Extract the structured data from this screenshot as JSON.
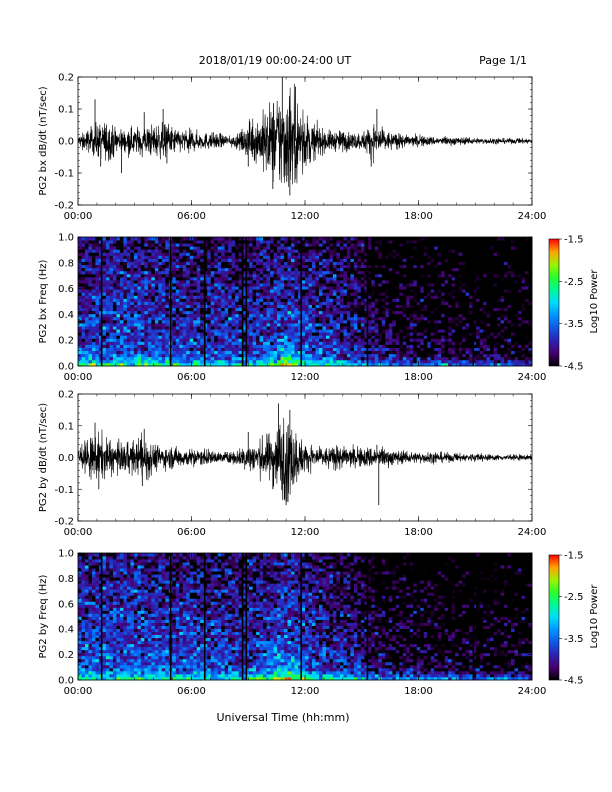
{
  "header": {
    "date_range": "2018/01/19   00:00-24:00 UT",
    "page": "Page 1/1"
  },
  "xlabel": "Universal Time (hh:mm)",
  "chart_data": [
    {
      "type": "line",
      "title": "",
      "ylabel": "PG2 bx dB/dt (nT/sec)",
      "xlabel": "",
      "xlim": [
        "00:00",
        "24:00"
      ],
      "xticks": [
        "00:00",
        "06:00",
        "12:00",
        "18:00",
        "24:00"
      ],
      "ylim": [
        -0.2,
        0.2
      ],
      "yticks": [
        "-0.2",
        "-0.1",
        "0.0",
        "0.1",
        "0.2"
      ],
      "color": "#000000",
      "envelope": {
        "hours": [
          0,
          0.5,
          1,
          1.5,
          2,
          2.5,
          3,
          3.5,
          4,
          4.5,
          5,
          5.5,
          6,
          6.5,
          7,
          7.5,
          8,
          8.5,
          9,
          9.5,
          10,
          10.5,
          11,
          11.5,
          12,
          12.5,
          13,
          13.5,
          14,
          14.5,
          15,
          15.5,
          16,
          16.5,
          17,
          17.5,
          18,
          19,
          20,
          21,
          22,
          23,
          24
        ],
        "amplitude": [
          0.02,
          0.04,
          0.06,
          0.07,
          0.05,
          0.04,
          0.05,
          0.05,
          0.06,
          0.06,
          0.05,
          0.04,
          0.04,
          0.03,
          0.03,
          0.025,
          0.02,
          0.025,
          0.06,
          0.08,
          0.12,
          0.17,
          0.19,
          0.16,
          0.1,
          0.06,
          0.04,
          0.035,
          0.04,
          0.03,
          0.03,
          0.06,
          0.05,
          0.03,
          0.025,
          0.02,
          0.02,
          0.015,
          0.015,
          0.01,
          0.01,
          0.01,
          0.01
        ]
      },
      "peaks": [
        {
          "t": 0.9,
          "y": 0.13
        },
        {
          "t": 1.2,
          "y": -0.08
        },
        {
          "t": 2.3,
          "y": -0.1
        },
        {
          "t": 3.5,
          "y": 0.09
        },
        {
          "t": 4.5,
          "y": 0.1
        },
        {
          "t": 4.7,
          "y": -0.07
        },
        {
          "t": 9.0,
          "y": -0.08
        },
        {
          "t": 10.3,
          "y": -0.15
        },
        {
          "t": 10.8,
          "y": 0.2
        },
        {
          "t": 11.2,
          "y": -0.17
        },
        {
          "t": 11.5,
          "y": 0.17
        },
        {
          "t": 15.8,
          "y": 0.1
        },
        {
          "t": 15.5,
          "y": -0.08
        }
      ]
    },
    {
      "type": "heatmap",
      "title": "",
      "ylabel": "PG2 bx Freq (Hz)",
      "xlim": [
        "00:00",
        "24:00"
      ],
      "xticks": [
        "00:00",
        "06:00",
        "12:00",
        "18:00",
        "24:00"
      ],
      "ylim": [
        0.0,
        1.0
      ],
      "yticks": [
        "0.0",
        "0.2",
        "0.4",
        "0.6",
        "0.8",
        "1.0"
      ],
      "colorbar": {
        "label": "Log10 Power",
        "range": [
          -4.5,
          -1.5
        ],
        "ticks": [
          "-1.5",
          "-2.5",
          "-3.5",
          "-4.5"
        ]
      },
      "gap_lines_hours": [
        1.25,
        4.9,
        6.7,
        8.7,
        8.9,
        11.8,
        15.3,
        20.9
      ],
      "level_profile_hours": [
        0,
        3,
        6,
        9,
        11,
        12,
        14,
        15,
        16,
        18,
        21,
        24
      ],
      "level_profile": [
        -3.7,
        -3.6,
        -3.75,
        -3.8,
        -3.6,
        -3.7,
        -3.9,
        -4.0,
        -4.25,
        -4.35,
        -4.45,
        -4.5
      ]
    },
    {
      "type": "line",
      "title": "",
      "ylabel": "PG2 by dB/dt (nT/sec)",
      "xlabel": "",
      "xlim": [
        "00:00",
        "24:00"
      ],
      "xticks": [
        "00:00",
        "06:00",
        "12:00",
        "18:00",
        "24:00"
      ],
      "ylim": [
        -0.2,
        0.2
      ],
      "yticks": [
        "-0.2",
        "-0.1",
        "0.0",
        "0.1",
        "0.2"
      ],
      "color": "#000000",
      "envelope": {
        "hours": [
          0,
          0.5,
          1,
          1.5,
          2,
          2.5,
          3,
          3.5,
          4,
          4.5,
          5,
          5.5,
          6,
          6.5,
          7,
          7.5,
          8,
          8.5,
          9,
          9.5,
          10,
          10.5,
          11,
          11.5,
          12,
          12.5,
          13,
          13.5,
          14,
          14.5,
          15,
          15.5,
          16,
          16.5,
          17,
          17.5,
          18,
          19,
          20,
          21,
          22,
          23,
          24
        ],
        "amplitude": [
          0.03,
          0.06,
          0.09,
          0.07,
          0.05,
          0.05,
          0.06,
          0.08,
          0.05,
          0.04,
          0.04,
          0.035,
          0.03,
          0.03,
          0.025,
          0.02,
          0.02,
          0.03,
          0.05,
          0.06,
          0.08,
          0.12,
          0.16,
          0.1,
          0.05,
          0.04,
          0.035,
          0.04,
          0.04,
          0.035,
          0.035,
          0.04,
          0.035,
          0.03,
          0.025,
          0.02,
          0.02,
          0.02,
          0.015,
          0.015,
          0.01,
          0.01,
          0.01
        ]
      },
      "peaks": [
        {
          "t": 0.9,
          "y": 0.11
        },
        {
          "t": 1.1,
          "y": -0.1
        },
        {
          "t": 3.5,
          "y": 0.09
        },
        {
          "t": 3.4,
          "y": -0.09
        },
        {
          "t": 9.0,
          "y": 0.08
        },
        {
          "t": 10.3,
          "y": -0.1
        },
        {
          "t": 10.6,
          "y": 0.17
        },
        {
          "t": 11.0,
          "y": -0.15
        },
        {
          "t": 11.2,
          "y": 0.15
        },
        {
          "t": 15.8,
          "y": 0.04
        },
        {
          "t": 15.9,
          "y": -0.15
        }
      ]
    },
    {
      "type": "heatmap",
      "title": "",
      "ylabel": "PG2 by Freq (Hz)",
      "xlim": [
        "00:00",
        "24:00"
      ],
      "xticks": [
        "00:00",
        "06:00",
        "12:00",
        "18:00",
        "24:00"
      ],
      "ylim": [
        0.0,
        1.0
      ],
      "yticks": [
        "0.0",
        "0.2",
        "0.4",
        "0.6",
        "0.8",
        "1.0"
      ],
      "colorbar": {
        "label": "Log10 Power",
        "range": [
          -4.5,
          -1.5
        ],
        "ticks": [
          "-1.5",
          "-2.5",
          "-3.5",
          "-4.5"
        ]
      },
      "gap_lines_hours": [
        1.25,
        4.9,
        6.7,
        8.7,
        8.9,
        11.8,
        15.3,
        20.9
      ],
      "level_profile_hours": [
        0,
        3,
        6,
        9,
        11,
        12,
        14,
        15,
        16,
        18,
        21,
        24
      ],
      "level_profile": [
        -3.65,
        -3.55,
        -3.7,
        -3.75,
        -3.55,
        -3.7,
        -3.9,
        -4.0,
        -4.25,
        -4.35,
        -4.45,
        -4.5
      ]
    }
  ]
}
